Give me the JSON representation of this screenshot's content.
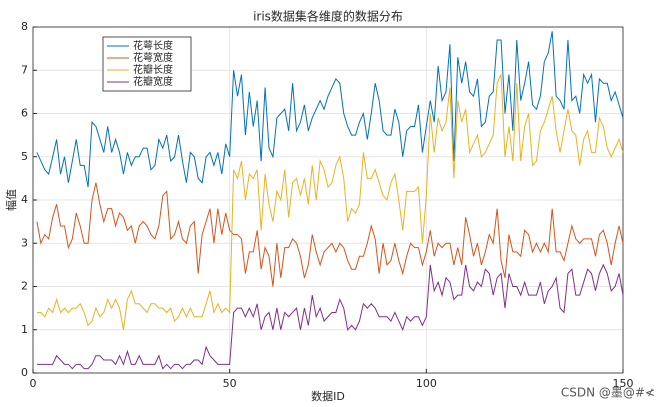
{
  "chart_data": {
    "type": "line",
    "title": "iris数据集各维度的数据分布",
    "x_label": "数据ID",
    "y_label": "幅值",
    "watermark": "CSDN @墨@#≮",
    "xlim": [
      0,
      150
    ],
    "ylim": [
      0,
      8
    ],
    "xticks": [
      0,
      50,
      100,
      150
    ],
    "yticks": [
      0,
      1,
      2,
      3,
      4,
      5,
      6,
      7,
      8
    ],
    "grid": true,
    "legend": "northwest",
    "x": [
      1,
      2,
      3,
      4,
      5,
      6,
      7,
      8,
      9,
      10,
      11,
      12,
      13,
      14,
      15,
      16,
      17,
      18,
      19,
      20,
      21,
      22,
      23,
      24,
      25,
      26,
      27,
      28,
      29,
      30,
      31,
      32,
      33,
      34,
      35,
      36,
      37,
      38,
      39,
      40,
      41,
      42,
      43,
      44,
      45,
      46,
      47,
      48,
      49,
      50,
      51,
      52,
      53,
      54,
      55,
      56,
      57,
      58,
      59,
      60,
      61,
      62,
      63,
      64,
      65,
      66,
      67,
      68,
      69,
      70,
      71,
      72,
      73,
      74,
      75,
      76,
      77,
      78,
      79,
      80,
      81,
      82,
      83,
      84,
      85,
      86,
      87,
      88,
      89,
      90,
      91,
      92,
      93,
      94,
      95,
      96,
      97,
      98,
      99,
      100,
      101,
      102,
      103,
      104,
      105,
      106,
      107,
      108,
      109,
      110,
      111,
      112,
      113,
      114,
      115,
      116,
      117,
      118,
      119,
      120,
      121,
      122,
      123,
      124,
      125,
      126,
      127,
      128,
      129,
      130,
      131,
      132,
      133,
      134,
      135,
      136,
      137,
      138,
      139,
      140,
      141,
      142,
      143,
      144,
      145,
      146,
      147,
      148,
      149,
      150
    ],
    "series": [
      {
        "name": "花萼长度",
        "color": "#0072BD",
        "values": [
          5.1,
          4.9,
          4.7,
          4.6,
          5.0,
          5.4,
          4.6,
          5.0,
          4.4,
          4.9,
          5.4,
          4.8,
          4.8,
          4.3,
          5.8,
          5.7,
          5.4,
          5.1,
          5.7,
          5.1,
          5.4,
          5.1,
          4.6,
          5.1,
          4.8,
          5.0,
          5.0,
          5.2,
          5.2,
          4.7,
          4.8,
          5.4,
          5.2,
          5.5,
          4.9,
          5.0,
          5.5,
          4.9,
          4.4,
          5.1,
          5.0,
          4.5,
          4.4,
          5.0,
          5.1,
          4.8,
          5.1,
          4.6,
          5.3,
          5.0,
          7.0,
          6.4,
          6.9,
          5.5,
          6.5,
          5.7,
          6.3,
          4.9,
          6.6,
          5.2,
          5.0,
          5.9,
          6.0,
          6.1,
          5.6,
          6.7,
          5.6,
          5.8,
          6.2,
          5.6,
          5.9,
          6.1,
          6.3,
          6.1,
          6.4,
          6.6,
          6.8,
          6.7,
          6.0,
          5.7,
          5.5,
          5.5,
          5.8,
          6.0,
          5.4,
          6.0,
          6.7,
          6.3,
          5.6,
          5.5,
          5.5,
          6.1,
          5.8,
          5.0,
          5.6,
          5.7,
          5.7,
          6.2,
          5.1,
          5.7,
          6.3,
          5.8,
          7.1,
          6.3,
          6.5,
          7.6,
          4.9,
          7.3,
          6.7,
          7.2,
          6.5,
          6.4,
          6.8,
          5.7,
          5.8,
          6.4,
          6.5,
          7.7,
          7.7,
          6.0,
          6.9,
          5.6,
          7.7,
          6.3,
          6.7,
          7.2,
          6.2,
          6.1,
          6.4,
          7.2,
          7.4,
          7.9,
          6.4,
          6.3,
          6.1,
          7.7,
          6.3,
          6.4,
          6.0,
          6.9,
          6.7,
          6.9,
          5.8,
          6.8,
          6.7,
          6.7,
          6.3,
          6.5,
          6.2,
          5.9
        ]
      },
      {
        "name": "花萼宽度",
        "color": "#D95319",
        "values": [
          3.5,
          3.0,
          3.2,
          3.1,
          3.6,
          3.9,
          3.4,
          3.4,
          2.9,
          3.1,
          3.7,
          3.4,
          3.0,
          3.0,
          4.0,
          4.4,
          3.9,
          3.5,
          3.8,
          3.8,
          3.4,
          3.7,
          3.6,
          3.3,
          3.4,
          3.0,
          3.4,
          3.5,
          3.4,
          3.2,
          3.1,
          3.4,
          4.1,
          4.2,
          3.1,
          3.2,
          3.5,
          3.1,
          3.0,
          3.4,
          3.5,
          2.3,
          3.2,
          3.5,
          3.8,
          3.0,
          3.8,
          3.2,
          3.7,
          3.3,
          3.2,
          3.2,
          3.1,
          2.3,
          2.8,
          2.8,
          3.3,
          2.4,
          2.9,
          2.7,
          2.0,
          3.0,
          2.2,
          2.9,
          2.9,
          3.1,
          3.0,
          2.7,
          2.2,
          2.5,
          3.2,
          2.8,
          2.5,
          2.8,
          2.9,
          3.0,
          2.8,
          3.0,
          2.9,
          2.6,
          2.4,
          2.4,
          2.7,
          2.7,
          3.0,
          3.4,
          3.1,
          2.3,
          3.0,
          2.5,
          2.6,
          3.0,
          2.6,
          2.3,
          2.7,
          3.0,
          2.9,
          2.9,
          2.5,
          2.8,
          3.3,
          2.7,
          3.0,
          2.9,
          3.0,
          3.0,
          2.5,
          2.9,
          2.5,
          3.6,
          3.2,
          2.7,
          3.0,
          2.5,
          2.8,
          3.2,
          3.0,
          3.8,
          2.6,
          2.2,
          3.2,
          2.8,
          2.8,
          2.7,
          3.3,
          3.2,
          2.8,
          3.0,
          2.8,
          3.0,
          2.8,
          3.8,
          2.8,
          2.8,
          2.6,
          3.0,
          3.4,
          3.1,
          3.0,
          3.1,
          3.1,
          3.1,
          2.7,
          3.2,
          3.3,
          3.0,
          2.5,
          3.0,
          3.4,
          3.0
        ]
      },
      {
        "name": "花瓣长度",
        "color": "#EDB120",
        "values": [
          1.4,
          1.4,
          1.3,
          1.5,
          1.4,
          1.7,
          1.4,
          1.5,
          1.4,
          1.5,
          1.5,
          1.6,
          1.4,
          1.1,
          1.2,
          1.5,
          1.3,
          1.4,
          1.7,
          1.5,
          1.7,
          1.5,
          1.0,
          1.7,
          1.9,
          1.6,
          1.6,
          1.5,
          1.4,
          1.6,
          1.6,
          1.5,
          1.5,
          1.4,
          1.5,
          1.2,
          1.3,
          1.5,
          1.3,
          1.5,
          1.3,
          1.3,
          1.3,
          1.6,
          1.9,
          1.4,
          1.6,
          1.4,
          1.5,
          1.4,
          4.7,
          4.5,
          4.9,
          4.0,
          4.6,
          4.5,
          4.7,
          3.3,
          4.6,
          3.9,
          3.5,
          4.2,
          4.0,
          4.7,
          3.6,
          4.4,
          4.5,
          4.1,
          4.5,
          3.9,
          4.8,
          4.0,
          4.9,
          4.7,
          4.3,
          4.4,
          4.8,
          5.0,
          4.5,
          3.5,
          3.8,
          3.7,
          3.9,
          5.1,
          4.5,
          4.5,
          4.7,
          4.4,
          4.1,
          4.0,
          4.4,
          4.6,
          4.0,
          3.3,
          4.2,
          4.2,
          4.2,
          4.3,
          3.0,
          4.1,
          6.0,
          5.1,
          5.9,
          5.6,
          5.8,
          6.6,
          4.5,
          6.3,
          5.8,
          6.1,
          5.1,
          5.3,
          5.5,
          5.0,
          5.1,
          5.3,
          5.5,
          6.7,
          6.9,
          5.0,
          5.7,
          4.9,
          6.7,
          4.9,
          5.7,
          6.0,
          4.8,
          4.9,
          5.6,
          5.8,
          6.1,
          6.4,
          5.6,
          5.1,
          5.6,
          6.1,
          5.6,
          5.5,
          4.8,
          5.4,
          5.6,
          5.1,
          5.1,
          5.9,
          5.7,
          5.2,
          5.0,
          5.2,
          5.4,
          5.1
        ]
      },
      {
        "name": "花瓣宽度",
        "color": "#7E2F8E",
        "values": [
          0.2,
          0.2,
          0.2,
          0.2,
          0.2,
          0.4,
          0.3,
          0.2,
          0.2,
          0.1,
          0.2,
          0.2,
          0.1,
          0.1,
          0.2,
          0.4,
          0.4,
          0.3,
          0.3,
          0.3,
          0.2,
          0.4,
          0.2,
          0.5,
          0.2,
          0.2,
          0.4,
          0.2,
          0.2,
          0.2,
          0.2,
          0.4,
          0.1,
          0.2,
          0.1,
          0.2,
          0.2,
          0.1,
          0.2,
          0.2,
          0.3,
          0.3,
          0.2,
          0.6,
          0.4,
          0.3,
          0.2,
          0.2,
          0.2,
          0.2,
          1.4,
          1.5,
          1.5,
          1.3,
          1.5,
          1.3,
          1.6,
          1.0,
          1.3,
          1.4,
          1.0,
          1.5,
          1.0,
          1.4,
          1.3,
          1.4,
          1.5,
          1.0,
          1.5,
          1.1,
          1.8,
          1.3,
          1.5,
          1.2,
          1.3,
          1.4,
          1.4,
          1.7,
          1.5,
          1.0,
          1.1,
          1.0,
          1.2,
          1.6,
          1.5,
          1.6,
          1.5,
          1.3,
          1.3,
          1.3,
          1.2,
          1.4,
          1.2,
          1.0,
          1.3,
          1.2,
          1.3,
          1.3,
          1.1,
          1.3,
          2.5,
          1.9,
          2.1,
          1.8,
          2.2,
          2.1,
          1.7,
          1.8,
          1.8,
          2.5,
          2.0,
          1.9,
          2.1,
          2.0,
          2.4,
          2.3,
          1.8,
          2.2,
          2.3,
          1.5,
          2.3,
          2.0,
          2.0,
          1.8,
          2.1,
          1.8,
          1.8,
          1.8,
          2.1,
          1.6,
          1.9,
          2.0,
          2.2,
          1.5,
          1.4,
          2.3,
          2.4,
          1.8,
          1.8,
          2.1,
          2.4,
          2.3,
          1.9,
          2.3,
          2.5,
          2.3,
          1.9,
          2.0,
          2.3,
          1.8
        ]
      }
    ]
  }
}
